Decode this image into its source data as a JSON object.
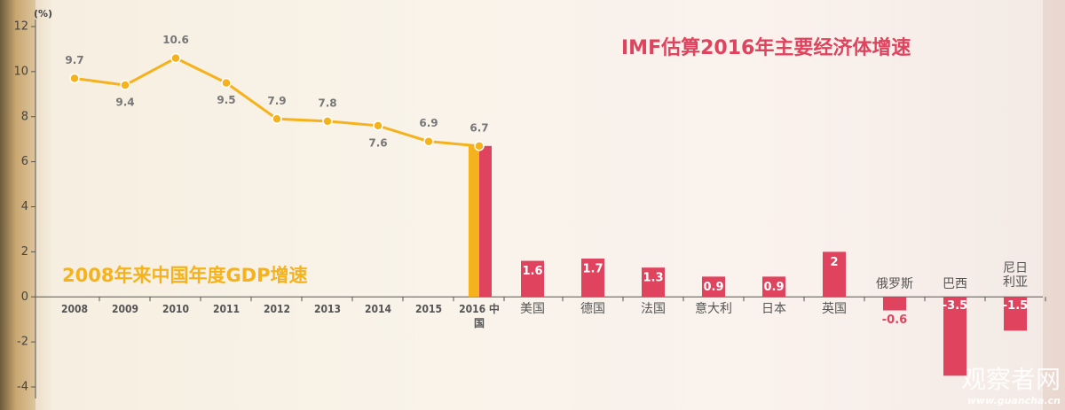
{
  "chart_data": {
    "type": "bar",
    "ylabel": "(%)",
    "categories": [
      "2008",
      "2009",
      "2010",
      "2011",
      "2012",
      "2013",
      "2014",
      "2015",
      "2016 中国",
      "美国",
      "德国",
      "法国",
      "意大利",
      "日本",
      "英国",
      "俄罗斯",
      "巴西",
      "尼日 利亚"
    ],
    "series": [
      {
        "name": "2008年来中国年度GDP增速",
        "type": "line",
        "color": "#f5b21c",
        "values": [
          9.7,
          9.4,
          10.6,
          9.5,
          7.9,
          7.8,
          7.6,
          6.9,
          6.7,
          null,
          null,
          null,
          null,
          null,
          null,
          null,
          null,
          null
        ]
      },
      {
        "name": "IMF估算2016年主要经济体增速",
        "type": "bar",
        "color": "#e0435e",
        "values": [
          null,
          null,
          null,
          null,
          null,
          null,
          null,
          null,
          6.7,
          1.6,
          1.7,
          1.3,
          0.9,
          0.9,
          2,
          -0.6,
          -3.5,
          -1.5
        ]
      }
    ],
    "ylim": [
      -4,
      12
    ],
    "yticks": [
      -4,
      -2,
      0,
      2,
      4,
      6,
      8,
      10,
      12
    ],
    "watermark": {
      "name": "观察者网",
      "url": "www.guancha.cn"
    }
  }
}
